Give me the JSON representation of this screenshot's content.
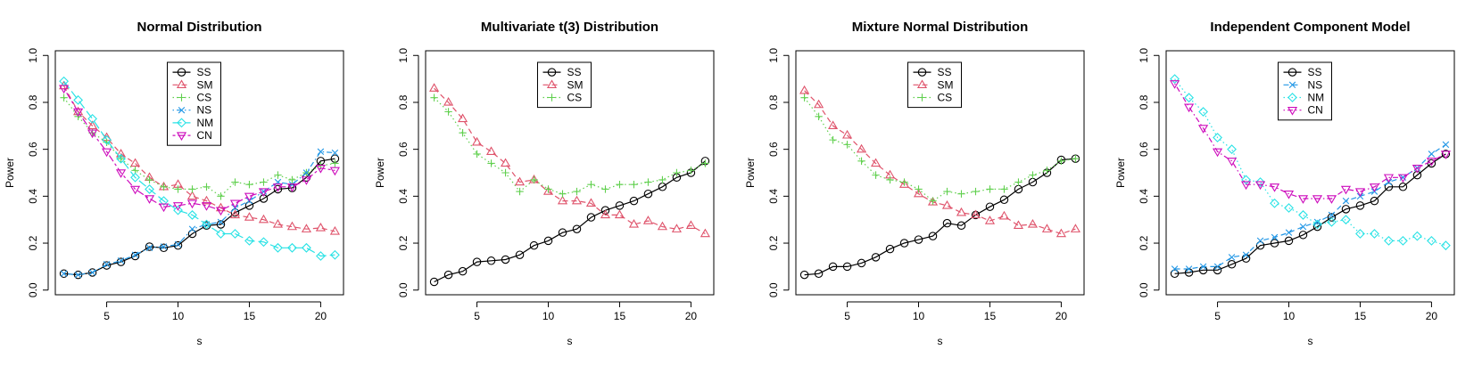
{
  "chart_data": [
    {
      "type": "line",
      "title": "Normal Distribution",
      "xlabel": "s",
      "ylabel": "Power",
      "xlim": [
        1.4,
        21.6
      ],
      "ylim": [
        -0.02,
        1.02
      ],
      "xticks": [
        5,
        10,
        15,
        20
      ],
      "yticks": [
        0.0,
        0.2,
        0.4,
        0.6,
        0.8,
        1.0
      ],
      "ytick_labels": [
        "0.0",
        "0.2",
        "0.4",
        "0.6",
        "0.8",
        "1.0"
      ],
      "legend_position": "top-center",
      "x": [
        2,
        3,
        4,
        5,
        6,
        7,
        8,
        9,
        10,
        11,
        12,
        13,
        14,
        15,
        16,
        17,
        18,
        19,
        20,
        21
      ],
      "series": [
        {
          "name": "SS",
          "color": "#000000",
          "marker": "circle",
          "dash": "solid",
          "values": [
            0.07,
            0.065,
            0.075,
            0.105,
            0.12,
            0.145,
            0.185,
            0.18,
            0.19,
            0.24,
            0.275,
            0.28,
            0.33,
            0.36,
            0.39,
            0.43,
            0.435,
            0.48,
            0.55,
            0.56
          ]
        },
        {
          "name": "SM",
          "color": "#DF536B",
          "marker": "triangle",
          "dash": "dashed",
          "values": [
            0.87,
            0.76,
            0.7,
            0.65,
            0.58,
            0.54,
            0.48,
            0.44,
            0.45,
            0.4,
            0.38,
            0.35,
            0.32,
            0.31,
            0.3,
            0.28,
            0.27,
            0.26,
            0.265,
            0.25
          ]
        },
        {
          "name": "CS",
          "color": "#61D04F",
          "marker": "plus",
          "dash": "dotted",
          "values": [
            0.82,
            0.74,
            0.67,
            0.63,
            0.56,
            0.51,
            0.47,
            0.44,
            0.43,
            0.43,
            0.44,
            0.4,
            0.46,
            0.45,
            0.46,
            0.49,
            0.47,
            0.5,
            0.53,
            0.54
          ]
        },
        {
          "name": "NS",
          "color": "#2297E6",
          "marker": "cross",
          "dash": "dotdash",
          "values": [
            0.07,
            0.065,
            0.075,
            0.11,
            0.125,
            0.15,
            0.18,
            0.185,
            0.195,
            0.26,
            0.28,
            0.29,
            0.35,
            0.38,
            0.42,
            0.46,
            0.45,
            0.5,
            0.59,
            0.585
          ]
        },
        {
          "name": "NM",
          "color": "#28E2E5",
          "marker": "diamond",
          "dash": "longdash",
          "values": [
            0.89,
            0.81,
            0.73,
            0.64,
            0.56,
            0.48,
            0.43,
            0.38,
            0.34,
            0.32,
            0.28,
            0.24,
            0.24,
            0.21,
            0.205,
            0.18,
            0.18,
            0.18,
            0.145,
            0.15
          ]
        },
        {
          "name": "CN",
          "color": "#CD0BBC",
          "marker": "down-triangle",
          "dash": "twodash",
          "values": [
            0.86,
            0.76,
            0.67,
            0.59,
            0.5,
            0.43,
            0.39,
            0.355,
            0.36,
            0.37,
            0.36,
            0.34,
            0.37,
            0.4,
            0.42,
            0.44,
            0.44,
            0.47,
            0.52,
            0.51
          ]
        }
      ]
    },
    {
      "type": "line",
      "title": "Multivariate t(3) Distribution",
      "xlabel": "s",
      "ylabel": "Power",
      "xlim": [
        1.4,
        21.6
      ],
      "ylim": [
        -0.02,
        1.02
      ],
      "xticks": [
        5,
        10,
        15,
        20
      ],
      "yticks": [
        0.0,
        0.2,
        0.4,
        0.6,
        0.8,
        1.0
      ],
      "ytick_labels": [
        "0.0",
        "0.2",
        "0.4",
        "0.6",
        "0.8",
        "1.0"
      ],
      "legend_position": "top-center",
      "x": [
        2,
        3,
        4,
        5,
        6,
        7,
        8,
        9,
        10,
        11,
        12,
        13,
        14,
        15,
        16,
        17,
        18,
        19,
        20,
        21
      ],
      "series": [
        {
          "name": "SS",
          "color": "#000000",
          "marker": "circle",
          "dash": "solid",
          "values": [
            0.035,
            0.065,
            0.08,
            0.12,
            0.125,
            0.13,
            0.15,
            0.19,
            0.21,
            0.245,
            0.26,
            0.31,
            0.34,
            0.36,
            0.38,
            0.41,
            0.44,
            0.48,
            0.5,
            0.55
          ]
        },
        {
          "name": "SM",
          "color": "#DF536B",
          "marker": "triangle",
          "dash": "dashed",
          "values": [
            0.86,
            0.8,
            0.73,
            0.63,
            0.59,
            0.54,
            0.46,
            0.47,
            0.42,
            0.38,
            0.38,
            0.37,
            0.32,
            0.32,
            0.28,
            0.295,
            0.27,
            0.26,
            0.275,
            0.24
          ]
        },
        {
          "name": "CS",
          "color": "#61D04F",
          "marker": "plus",
          "dash": "dotted",
          "values": [
            0.82,
            0.76,
            0.67,
            0.58,
            0.54,
            0.5,
            0.42,
            0.47,
            0.43,
            0.41,
            0.42,
            0.45,
            0.43,
            0.45,
            0.45,
            0.46,
            0.47,
            0.5,
            0.51,
            0.54
          ]
        }
      ]
    },
    {
      "type": "line",
      "title": "Mixture Normal Distribution",
      "xlabel": "s",
      "ylabel": "Power",
      "xlim": [
        1.4,
        21.6
      ],
      "ylim": [
        -0.02,
        1.02
      ],
      "xticks": [
        5,
        10,
        15,
        20
      ],
      "yticks": [
        0.0,
        0.2,
        0.4,
        0.6,
        0.8,
        1.0
      ],
      "ytick_labels": [
        "0.0",
        "0.2",
        "0.4",
        "0.6",
        "0.8",
        "1.0"
      ],
      "legend_position": "top-center",
      "x": [
        2,
        3,
        4,
        5,
        6,
        7,
        8,
        9,
        10,
        11,
        12,
        13,
        14,
        15,
        16,
        17,
        18,
        19,
        20,
        21
      ],
      "series": [
        {
          "name": "SS",
          "color": "#000000",
          "marker": "circle",
          "dash": "solid",
          "values": [
            0.065,
            0.07,
            0.1,
            0.1,
            0.115,
            0.14,
            0.175,
            0.2,
            0.215,
            0.23,
            0.285,
            0.275,
            0.32,
            0.355,
            0.385,
            0.43,
            0.46,
            0.5,
            0.555,
            0.56
          ]
        },
        {
          "name": "SM",
          "color": "#DF536B",
          "marker": "triangle",
          "dash": "dashed",
          "values": [
            0.85,
            0.79,
            0.7,
            0.66,
            0.6,
            0.54,
            0.49,
            0.45,
            0.41,
            0.375,
            0.36,
            0.33,
            0.32,
            0.295,
            0.315,
            0.275,
            0.28,
            0.26,
            0.24,
            0.26
          ]
        },
        {
          "name": "CS",
          "color": "#61D04F",
          "marker": "plus",
          "dash": "dotted",
          "values": [
            0.82,
            0.74,
            0.64,
            0.62,
            0.55,
            0.49,
            0.47,
            0.46,
            0.43,
            0.38,
            0.42,
            0.41,
            0.42,
            0.43,
            0.43,
            0.46,
            0.49,
            0.51,
            0.55,
            0.56
          ]
        }
      ]
    },
    {
      "type": "line",
      "title": "Independent Component Model",
      "xlabel": "s",
      "ylabel": "Power",
      "xlim": [
        1.4,
        21.6
      ],
      "ylim": [
        -0.02,
        1.02
      ],
      "xticks": [
        5,
        10,
        15,
        20
      ],
      "yticks": [
        0.0,
        0.2,
        0.4,
        0.6,
        0.8,
        1.0
      ],
      "ytick_labels": [
        "0.0",
        "0.2",
        "0.4",
        "0.6",
        "0.8",
        "1.0"
      ],
      "legend_position": "top-center",
      "x": [
        2,
        3,
        4,
        5,
        6,
        7,
        8,
        9,
        10,
        11,
        12,
        13,
        14,
        15,
        16,
        17,
        18,
        19,
        20,
        21
      ],
      "series": [
        {
          "name": "SS",
          "color": "#000000",
          "marker": "circle",
          "dash": "solid",
          "values": [
            0.07,
            0.075,
            0.085,
            0.085,
            0.11,
            0.135,
            0.19,
            0.2,
            0.21,
            0.235,
            0.27,
            0.31,
            0.345,
            0.36,
            0.38,
            0.44,
            0.44,
            0.49,
            0.54,
            0.58
          ]
        },
        {
          "name": "NS",
          "color": "#2297E6",
          "marker": "cross",
          "dash": "dashed",
          "values": [
            0.09,
            0.09,
            0.1,
            0.1,
            0.14,
            0.15,
            0.21,
            0.225,
            0.245,
            0.27,
            0.29,
            0.32,
            0.38,
            0.4,
            0.42,
            0.46,
            0.48,
            0.52,
            0.58,
            0.62
          ]
        },
        {
          "name": "NM",
          "color": "#28E2E5",
          "marker": "diamond",
          "dash": "dotted",
          "values": [
            0.9,
            0.82,
            0.76,
            0.65,
            0.6,
            0.47,
            0.46,
            0.37,
            0.35,
            0.32,
            0.28,
            0.29,
            0.3,
            0.24,
            0.24,
            0.21,
            0.21,
            0.23,
            0.21,
            0.19
          ]
        },
        {
          "name": "CN",
          "color": "#CD0BBC",
          "marker": "down-triangle",
          "dash": "dotdash",
          "values": [
            0.88,
            0.78,
            0.69,
            0.59,
            0.55,
            0.45,
            0.45,
            0.44,
            0.41,
            0.39,
            0.39,
            0.39,
            0.43,
            0.42,
            0.44,
            0.48,
            0.48,
            0.52,
            0.55,
            0.58
          ]
        }
      ]
    }
  ]
}
